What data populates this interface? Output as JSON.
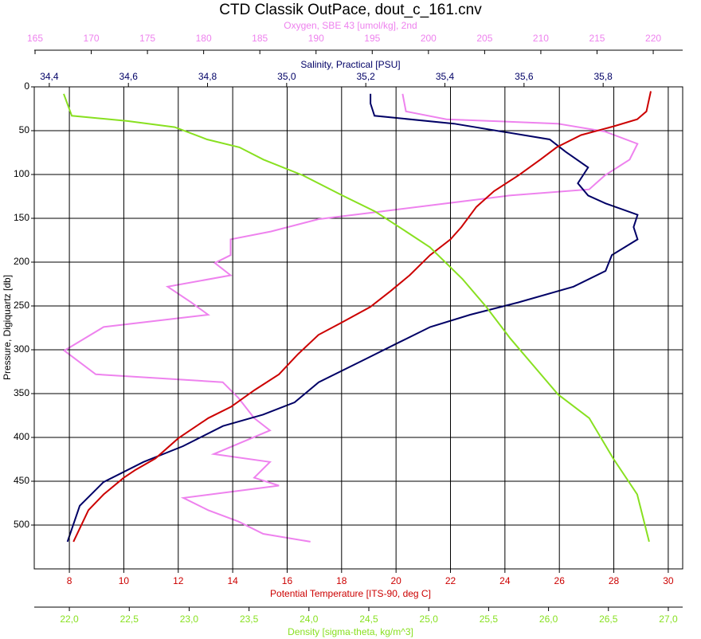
{
  "chart_data": {
    "type": "line",
    "title": "CTD Classik OutPace, dout_c_161.cnv",
    "ylabel": "Pressure, Digiquartz [db]",
    "ylim": [
      0,
      550
    ],
    "y_reversed": true,
    "yticks": [
      0,
      50,
      100,
      150,
      200,
      250,
      300,
      350,
      400,
      450,
      500
    ],
    "grid": true,
    "axes": [
      {
        "label": "Oxygen, SBE 43 [umol/kg], 2nd",
        "color": "#ee82ee",
        "xlim": [
          164.93,
          222.62
        ],
        "xticks": [
          165,
          170,
          175,
          180,
          185,
          190,
          195,
          200,
          205,
          210,
          215,
          220
        ],
        "pressure": [
          8,
          28,
          37,
          42,
          51,
          65,
          83,
          101,
          117,
          124,
          133,
          142,
          151,
          165,
          174,
          192,
          201,
          215,
          228,
          246,
          260,
          274,
          301,
          328,
          337,
          355,
          378,
          392,
          419,
          428,
          446,
          455,
          469,
          483,
          496,
          510,
          519
        ],
        "values": [
          197.7,
          198.0,
          201.6,
          211.5,
          215.7,
          218.6,
          217.9,
          215.7,
          214.3,
          207.2,
          201.6,
          195.9,
          190.2,
          186.0,
          182.4,
          182.4,
          181.0,
          182.4,
          176.8,
          178.9,
          180.4,
          171.1,
          167.6,
          170.4,
          181.7,
          183.1,
          184.5,
          185.9,
          180.9,
          185.9,
          184.5,
          186.7,
          178.2,
          180.4,
          183.1,
          185.3,
          189.5
        ]
      },
      {
        "label": "Salinity, Practical [PSU]",
        "color": "#000066",
        "xlim": [
          34.362,
          36.001
        ],
        "xticks": [
          {
            "value": 34.4,
            "label": "34,4"
          },
          {
            "value": 34.6,
            "label": "34,6"
          },
          {
            "value": 34.8,
            "label": "34,8"
          },
          {
            "value": 35.0,
            "label": "35,0"
          },
          {
            "value": 35.2,
            "label": "35,2"
          },
          {
            "value": 35.4,
            "label": "35,4"
          },
          {
            "value": 35.6,
            "label": "35,6"
          },
          {
            "value": 35.8,
            "label": "35,8"
          }
        ],
        "pressure": [
          8,
          19,
          33,
          42,
          51,
          60,
          74,
          92,
          110,
          124,
          133,
          146,
          160,
          174,
          192,
          210,
          228,
          246,
          260,
          274,
          292,
          310,
          337,
          360,
          374,
          387,
          410,
          428,
          451,
          478,
          519
        ],
        "values": [
          35.212,
          35.212,
          35.222,
          35.423,
          35.544,
          35.665,
          35.705,
          35.762,
          35.736,
          35.762,
          35.806,
          35.887,
          35.877,
          35.887,
          35.822,
          35.806,
          35.725,
          35.585,
          35.464,
          35.363,
          35.282,
          35.202,
          35.081,
          35.02,
          34.94,
          34.839,
          34.738,
          34.638,
          34.537,
          34.477,
          34.446
        ]
      },
      {
        "label": "Potential Temperature [ITS-90, deg C]",
        "color": "#cc0000",
        "xlim": [
          6.71,
          30.53
        ],
        "xticks": [
          8,
          10,
          12,
          14,
          16,
          18,
          20,
          22,
          24,
          26,
          28,
          30
        ],
        "pressure": [
          5,
          28,
          37,
          45,
          55,
          69,
          83,
          101,
          119,
          137,
          160,
          174,
          192,
          215,
          233,
          251,
          269,
          283,
          305,
          328,
          346,
          365,
          378,
          401,
          424,
          437,
          446,
          465,
          483,
          519
        ],
        "values": [
          29.36,
          29.2,
          28.86,
          28.0,
          26.8,
          25.9,
          25.3,
          24.5,
          23.6,
          22.95,
          22.4,
          22.0,
          21.25,
          20.5,
          19.8,
          19.06,
          18.0,
          17.15,
          16.4,
          15.7,
          14.8,
          13.94,
          13.1,
          12.0,
          11.16,
          10.43,
          10.0,
          9.26,
          8.7,
          8.15
        ]
      },
      {
        "label": "Density [sigma-theta, kg/m^3]",
        "color": "#88e020",
        "xlim": [
          21.707,
          27.12
        ],
        "xticks": [
          {
            "value": 22.0,
            "label": "22,0"
          },
          {
            "value": 22.5,
            "label": "22,5"
          },
          {
            "value": 23.0,
            "label": "23,0"
          },
          {
            "value": 23.5,
            "label": "23,5"
          },
          {
            "value": 24.0,
            "label": "24,0"
          },
          {
            "value": 24.5,
            "label": "24,5"
          },
          {
            "value": 25.0,
            "label": "25,0"
          },
          {
            "value": 25.5,
            "label": "25,5"
          },
          {
            "value": 26.0,
            "label": "26,0"
          },
          {
            "value": 26.5,
            "label": "26,5"
          },
          {
            "value": 27.0,
            "label": "27,0"
          }
        ],
        "pressure": [
          8,
          33,
          39,
          46,
          60,
          69,
          83,
          101,
          124,
          142,
          165,
          183,
          219,
          251,
          287,
          319,
          351,
          378,
          424,
          465,
          519
        ],
        "values": [
          21.953,
          22.02,
          22.485,
          22.88,
          23.15,
          23.42,
          23.62,
          23.95,
          24.28,
          24.55,
          24.81,
          25.01,
          25.28,
          25.48,
          25.68,
          25.88,
          26.08,
          26.34,
          26.54,
          26.74,
          26.84
        ]
      }
    ]
  }
}
